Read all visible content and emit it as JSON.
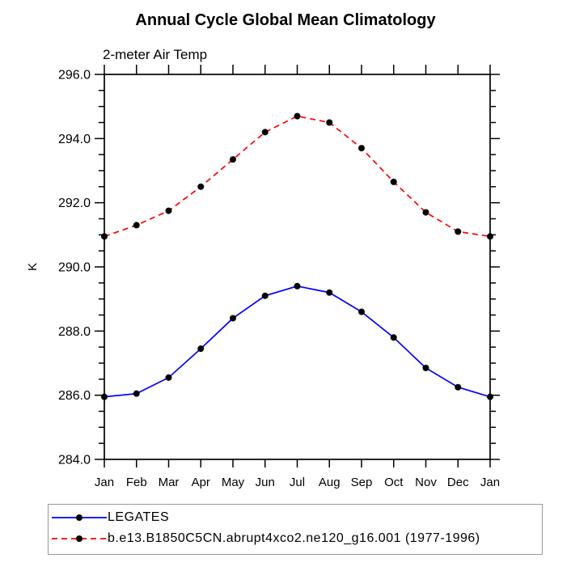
{
  "chart_data": {
    "type": "line",
    "title": "Annual Cycle Global Mean Climatology",
    "subtitle": "2-meter Air Temp",
    "ylabel": "K",
    "ylim": [
      284.0,
      296.0
    ],
    "yticks_major": [
      284.0,
      286.0,
      288.0,
      290.0,
      292.0,
      294.0,
      296.0
    ],
    "ytick_minor_interval": 0.5,
    "grid": "off",
    "legend_position": "bottom-left",
    "marker_color": "#000000",
    "categories": [
      "Jan",
      "Feb",
      "Mar",
      "Apr",
      "May",
      "Jun",
      "Jul",
      "Aug",
      "Sep",
      "Oct",
      "Nov",
      "Dec",
      "Jan"
    ],
    "series": [
      {
        "name": "LEGATES",
        "color": "#0000ff",
        "line_style": "solid",
        "dash": "none",
        "values": [
          285.95,
          286.05,
          286.55,
          287.45,
          288.4,
          289.1,
          289.4,
          289.2,
          288.6,
          287.8,
          286.85,
          286.25,
          285.95
        ]
      },
      {
        "name": "b.e13.B1850C5CN.abrupt4xco2.ne120_g16.001 (1977-1996)",
        "color": "#ff0000",
        "line_style": "dashed",
        "dash": "7 5",
        "values": [
          290.95,
          291.3,
          291.75,
          292.5,
          293.35,
          294.2,
          294.7,
          294.5,
          293.7,
          292.65,
          291.7,
          291.1,
          290.95
        ]
      }
    ]
  }
}
